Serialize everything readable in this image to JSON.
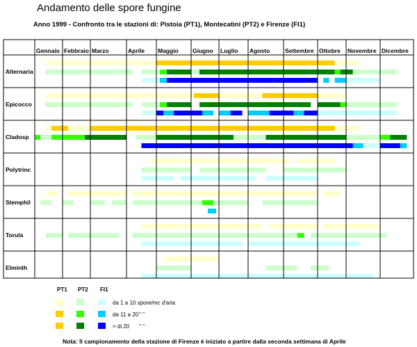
{
  "title": "Andamento delle spore fungine",
  "subtitle": "Anno 1999 - Confronto tra le stazioni di: Pistoia (PT1), Montecatini  (PT2) e Firenze (FI1)",
  "months": [
    "Gennaio",
    "Febbraio",
    "Marzo",
    "Aprile",
    "Maggio",
    "Giugno",
    "Luglio",
    "Agosto",
    "Settembre",
    "Ottobre",
    "Novembre",
    "Dicembre"
  ],
  "species": [
    "Alternaria",
    "Epicocco",
    "Cladosp",
    "Polytrinc",
    "Stemphil",
    "Torula",
    "Elminth"
  ],
  "legend": {
    "headers": [
      "PT1",
      "PT2",
      "FI1"
    ],
    "levels": [
      "da 1 a 10 spore/mc d'aria",
      "da 11 a 20",
      "> di 20"
    ],
    "ditto": "\"       \""
  },
  "colors": {
    "PT1": [
      "#ffffcc",
      "#ffcc00",
      "#ffcc00"
    ],
    "PT2": [
      "#ccffcc",
      "#33ff00",
      "#008000"
    ],
    "FI1": [
      "#ccffff",
      "#00ccff",
      "#0000ff"
    ],
    "mixed": "#99cc00"
  },
  "note": "Nota: Il campionamento della stazione di Firenze è iniziato a partire dalla seconda settimana di Aprile",
  "chart_data": {
    "type": "heatmap",
    "title": "Andamento delle spore fungine",
    "subtitle": "Anno 1999 - Confronto tra le stazioni di: Pistoia (PT1), Montecatini  (PT2) e Firenze (FI1)",
    "x_unit": "month",
    "x_range": [
      0,
      12
    ],
    "stations": [
      "PT1",
      "PT2",
      "FI1"
    ],
    "level_labels": [
      "da 1 a 10 spore/mc d'aria",
      "da 11 a 20",
      "> di 20"
    ],
    "series": [
      {
        "species": "Alternaria",
        "station": "PT1",
        "segments": [
          [
            0.4,
            4.0,
            1
          ],
          [
            4.0,
            9.6,
            3
          ],
          [
            9.6,
            10.4,
            1
          ]
        ]
      },
      {
        "species": "Alternaria",
        "station": "PT2",
        "segments": [
          [
            0.4,
            3.2,
            1
          ],
          [
            3.5,
            4.1,
            1
          ],
          [
            4.1,
            4.3,
            2
          ],
          [
            4.3,
            5.0,
            3
          ],
          [
            5.0,
            5.3,
            1
          ],
          [
            5.3,
            8.8,
            3
          ],
          [
            8.8,
            9.6,
            3
          ],
          [
            9.6,
            9.8,
            2
          ],
          [
            9.8,
            10.2,
            3
          ],
          [
            10.2,
            11.5,
            1
          ]
        ]
      },
      {
        "species": "Alternaria",
        "station": "FI1",
        "segments": [
          [
            3.5,
            4.1,
            1
          ],
          [
            4.1,
            4.3,
            2
          ],
          [
            4.3,
            7.7,
            3
          ],
          [
            7.7,
            9.0,
            3
          ],
          [
            9.2,
            9.4,
            2
          ],
          [
            9.6,
            10.0,
            2
          ],
          [
            10.0,
            11.0,
            1
          ]
        ]
      },
      {
        "species": "Epicocco",
        "station": "PT1",
        "segments": [
          [
            0.4,
            4.0,
            1
          ],
          [
            4.0,
            5.0,
            1
          ],
          [
            5.1,
            6.0,
            3
          ],
          [
            6.0,
            7.4,
            1
          ],
          [
            7.4,
            9.0,
            3
          ],
          [
            9.0,
            10.0,
            1
          ]
        ]
      },
      {
        "species": "Epicocco",
        "station": "PT2",
        "segments": [
          [
            0.4,
            3.2,
            1
          ],
          [
            3.5,
            4.1,
            1
          ],
          [
            4.1,
            4.3,
            2
          ],
          [
            4.3,
            5.0,
            3
          ],
          [
            5.3,
            8.8,
            3
          ],
          [
            9.0,
            9.8,
            3
          ],
          [
            9.8,
            10.0,
            2
          ],
          [
            10.0,
            11.5,
            1
          ]
        ]
      },
      {
        "species": "Epicocco",
        "station": "FI1",
        "segments": [
          [
            3.5,
            4.0,
            1
          ],
          [
            4.0,
            4.2,
            3
          ],
          [
            4.2,
            4.5,
            2
          ],
          [
            4.5,
            5.4,
            3
          ],
          [
            5.4,
            5.8,
            2
          ],
          [
            6.0,
            6.4,
            2
          ],
          [
            6.4,
            6.8,
            3
          ],
          [
            7.0,
            7.6,
            2
          ],
          [
            7.6,
            8.3,
            3
          ],
          [
            8.3,
            8.6,
            2
          ],
          [
            8.6,
            9.0,
            3
          ],
          [
            9.0,
            11.5,
            1
          ]
        ]
      },
      {
        "species": "Cladosp",
        "station": "PT1",
        "segments": [
          [
            0.4,
            0.6,
            1
          ],
          [
            0.6,
            1.2,
            3
          ],
          [
            1.2,
            2.0,
            1
          ],
          [
            2.0,
            9.6,
            3
          ],
          [
            9.6,
            10.4,
            1
          ]
        ]
      },
      {
        "species": "Cladosp",
        "station": "PT2",
        "segments": [
          [
            0.0,
            0.2,
            2
          ],
          [
            0.2,
            0.6,
            1
          ],
          [
            0.6,
            1.8,
            2
          ],
          [
            1.8,
            3.0,
            3
          ],
          [
            3.3,
            4.0,
            1
          ],
          [
            4.0,
            6.5,
            3
          ],
          [
            6.5,
            7.5,
            1
          ],
          [
            7.5,
            10.0,
            3
          ],
          [
            10.0,
            11.0,
            1
          ],
          [
            11.0,
            11.3,
            2
          ],
          [
            11.3,
            11.8,
            3
          ]
        ]
      },
      {
        "species": "Cladosp",
        "station": "FI1",
        "segments": [
          [
            3.5,
            10.2,
            3
          ],
          [
            10.2,
            10.5,
            2
          ],
          [
            10.5,
            11.0,
            1
          ],
          [
            11.0,
            11.6,
            3
          ],
          [
            11.6,
            11.8,
            2
          ]
        ]
      },
      {
        "species": "Polytrinc",
        "station": "PT1",
        "segments": [
          [
            3.8,
            8.2,
            1
          ],
          [
            8.4,
            9.6,
            1
          ]
        ]
      },
      {
        "species": "Polytrinc",
        "station": "PT2",
        "segments": [
          [
            3.5,
            5.0,
            1
          ],
          [
            5.3,
            7.5,
            1
          ],
          [
            8.0,
            10.0,
            1
          ]
        ]
      },
      {
        "species": "Polytrinc",
        "station": "FI1",
        "segments": [
          [
            3.5,
            4.5,
            1
          ],
          [
            4.7,
            7.2,
            1
          ],
          [
            7.5,
            9.0,
            1
          ]
        ]
      },
      {
        "species": "Stemphil",
        "station": "PT1",
        "segments": [
          [
            0.4,
            0.8,
            1
          ],
          [
            1.2,
            3.0,
            1
          ],
          [
            3.2,
            9.0,
            1
          ],
          [
            9.2,
            9.8,
            1
          ]
        ]
      },
      {
        "species": "Stemphil",
        "station": "PT2",
        "segments": [
          [
            0.2,
            0.6,
            1
          ],
          [
            1.0,
            1.4,
            1
          ],
          [
            2.0,
            2.4,
            1
          ],
          [
            2.6,
            3.0,
            1
          ],
          [
            3.2,
            5.4,
            1
          ],
          [
            5.4,
            5.8,
            2
          ],
          [
            5.8,
            7.0,
            1
          ],
          [
            7.4,
            9.0,
            1
          ]
        ]
      },
      {
        "species": "Stemphil",
        "station": "FI1",
        "segments": [
          [
            5.6,
            5.9,
            2
          ]
        ]
      },
      {
        "species": "Torula",
        "station": "PT1",
        "segments": [
          [
            3.5,
            7.4,
            1
          ],
          [
            7.6,
            9.0,
            1
          ],
          [
            9.2,
            11.0,
            1
          ]
        ]
      },
      {
        "species": "Torula",
        "station": "PT2",
        "segments": [
          [
            0.4,
            1.0,
            1
          ],
          [
            1.2,
            2.8,
            1
          ],
          [
            3.2,
            8.4,
            1
          ],
          [
            8.4,
            8.6,
            2
          ],
          [
            8.8,
            11.2,
            1
          ]
        ]
      },
      {
        "species": "Torula",
        "station": "FI1",
        "segments": [
          [
            3.5,
            6.8,
            1
          ],
          [
            7.0,
            10.4,
            1
          ]
        ]
      },
      {
        "species": "Elminth",
        "station": "PT1",
        "segments": [
          [
            4.2,
            6.0,
            1
          ]
        ]
      },
      {
        "species": "Elminth",
        "station": "PT2",
        "segments": [
          [
            4.0,
            5.0,
            1
          ],
          [
            7.5,
            8.4,
            1
          ],
          [
            8.8,
            9.4,
            1
          ]
        ]
      },
      {
        "species": "Elminth",
        "station": "FI1",
        "segments": [
          [
            3.5,
            10.8,
            1
          ]
        ]
      }
    ]
  }
}
